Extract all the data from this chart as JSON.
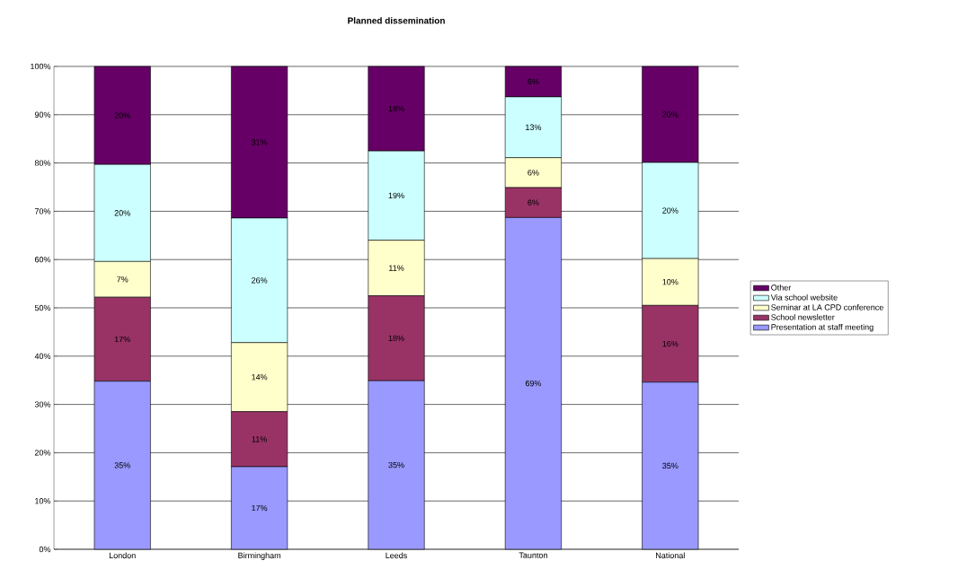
{
  "chart_data": {
    "type": "bar",
    "title": "Planned dissemination",
    "stacked": true,
    "grid": "y",
    "legend": "right",
    "categories": [
      "London",
      "Birmingham",
      "Leeds",
      "Taunton",
      "National"
    ],
    "ylim": [
      0,
      100
    ],
    "yticks": [
      {
        "value": 0,
        "label": "0%"
      },
      {
        "value": 10,
        "label": "10%"
      },
      {
        "value": 20,
        "label": "20%"
      },
      {
        "value": 30,
        "label": "30%"
      },
      {
        "value": 40,
        "label": "40%"
      },
      {
        "value": 50,
        "label": "50%"
      },
      {
        "value": 60,
        "label": "60%"
      },
      {
        "value": 70,
        "label": "70%"
      },
      {
        "value": 80,
        "label": "80%"
      },
      {
        "value": 90,
        "label": "90%"
      },
      {
        "value": 100,
        "label": "100%"
      }
    ],
    "series": [
      {
        "name": "Presentation at staff meeting",
        "color": "#9999ff",
        "values": [
          34.8,
          17.1,
          34.9,
          68.7,
          34.6
        ],
        "value_labels": [
          "35%",
          "17%",
          "35%",
          "69%",
          "35%"
        ]
      },
      {
        "name": "School newsletter",
        "color": "#993366",
        "values": [
          17.4,
          11.4,
          17.6,
          6.2,
          15.9
        ],
        "value_labels": [
          "17%",
          "11%",
          "18%",
          "6%",
          "16%"
        ]
      },
      {
        "name": "Seminar at LA CPD conference",
        "color": "#ffffcc",
        "values": [
          7.4,
          14.3,
          11.5,
          6.2,
          9.7
        ],
        "value_labels": [
          "7%",
          "14%",
          "11%",
          "6%",
          "10%"
        ]
      },
      {
        "name": "Via school website",
        "color": "#ccffff",
        "values": [
          20.1,
          25.8,
          18.5,
          12.6,
          19.9
        ],
        "value_labels": [
          "20%",
          "26%",
          "19%",
          "13%",
          "20%"
        ]
      },
      {
        "name": "Other",
        "color": "#660066",
        "values": [
          20.3,
          31.4,
          17.5,
          6.3,
          19.9
        ],
        "value_labels": [
          "20%",
          "31%",
          "18%",
          "6%",
          "20%"
        ]
      }
    ]
  }
}
